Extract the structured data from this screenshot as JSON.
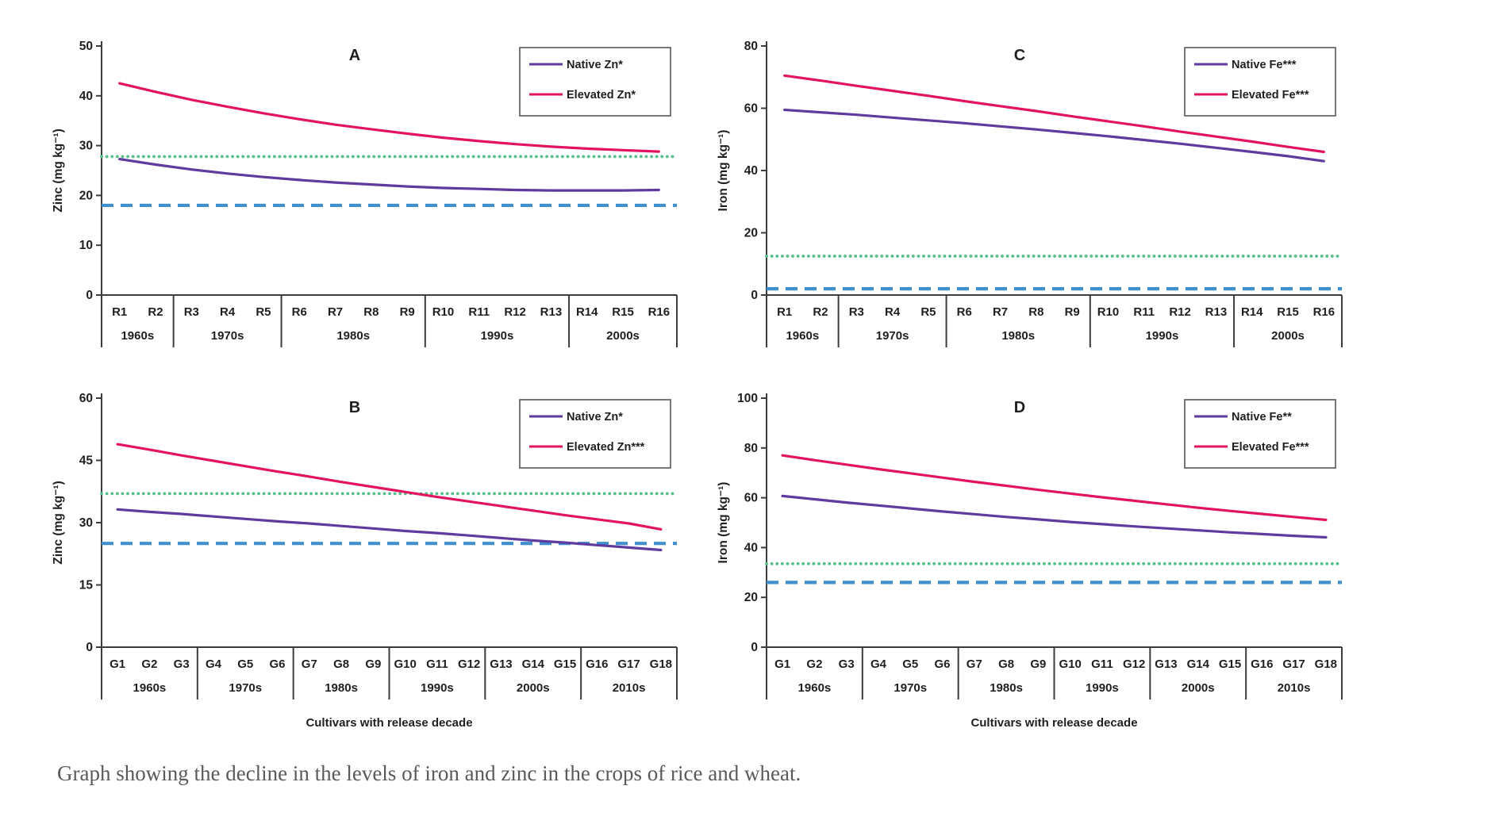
{
  "figure": {
    "caption": "Graph showing the decline in the levels of iron and zinc in the crops of rice and wheat.",
    "xlabel": "Cultivars with release decade",
    "colors": {
      "native_line": "#5f3a9f",
      "elevated_line": "#e3145f",
      "reference_dotted": "#55c08a",
      "reference_dashed": "#3f8fce",
      "axis": "#3c3c3c",
      "caption_text": "#5a5a5a"
    }
  },
  "chart_data": [
    {
      "type": "line",
      "panel": "A",
      "title": "A",
      "ylabel": "Zinc (mg kg⁻¹)",
      "xlabel": "",
      "show_xlabel": false,
      "ylim": [
        0,
        50
      ],
      "yticks": [
        0,
        10,
        20,
        30,
        40,
        50
      ],
      "grid": false,
      "legend_position": "top-right",
      "categories": [
        "R1",
        "R2",
        "R3",
        "R4",
        "R5",
        "R6",
        "R7",
        "R8",
        "R9",
        "R10",
        "R11",
        "R12",
        "R13",
        "R14",
        "R15",
        "R16"
      ],
      "decade_groups": [
        {
          "label": "1960s",
          "count": 2
        },
        {
          "label": "1970s",
          "count": 3
        },
        {
          "label": "1980s",
          "count": 4
        },
        {
          "label": "1990s",
          "count": 4
        },
        {
          "label": "2000s",
          "count": 3
        }
      ],
      "series": [
        {
          "name": "Native Zn*",
          "color": "#5f3a9f",
          "style": "solid",
          "values": [
            27.3,
            26.2,
            25.2,
            24.4,
            23.7,
            23.1,
            22.6,
            22.2,
            21.8,
            21.5,
            21.3,
            21.1,
            21.0,
            21.0,
            21.0,
            21.1
          ]
        },
        {
          "name": "Elevated Zn*",
          "color": "#e3145f",
          "style": "solid",
          "values": [
            42.5,
            40.8,
            39.2,
            37.8,
            36.5,
            35.3,
            34.2,
            33.3,
            32.4,
            31.6,
            30.9,
            30.3,
            29.8,
            29.4,
            29.1,
            28.8
          ]
        }
      ],
      "reference_lines": [
        {
          "value": 27.8,
          "color": "#55c08a",
          "style": "dotted"
        },
        {
          "value": 18.0,
          "color": "#3f8fce",
          "style": "dashed"
        }
      ]
    },
    {
      "type": "line",
      "panel": "C",
      "title": "C",
      "ylabel": "Iron (mg kg⁻¹)",
      "xlabel": "",
      "show_xlabel": false,
      "ylim": [
        0,
        80
      ],
      "yticks": [
        0,
        20,
        40,
        60,
        80
      ],
      "grid": false,
      "legend_position": "top-right",
      "categories": [
        "R1",
        "R2",
        "R3",
        "R4",
        "R5",
        "R6",
        "R7",
        "R8",
        "R9",
        "R10",
        "R11",
        "R12",
        "R13",
        "R14",
        "R15",
        "R16"
      ],
      "decade_groups": [
        {
          "label": "1960s",
          "count": 2
        },
        {
          "label": "1970s",
          "count": 3
        },
        {
          "label": "1980s",
          "count": 4
        },
        {
          "label": "1990s",
          "count": 4
        },
        {
          "label": "2000s",
          "count": 3
        }
      ],
      "series": [
        {
          "name": "Native Fe***",
          "color": "#5f3a9f",
          "style": "solid",
          "values": [
            59.5,
            58.7,
            57.9,
            57.0,
            56.1,
            55.2,
            54.2,
            53.2,
            52.1,
            51.0,
            49.8,
            48.6,
            47.3,
            46.0,
            44.6,
            43.0
          ]
        },
        {
          "name": "Elevated Fe***",
          "color": "#e3145f",
          "style": "solid",
          "values": [
            70.5,
            68.9,
            67.2,
            65.6,
            64.0,
            62.3,
            60.7,
            59.1,
            57.4,
            55.8,
            54.2,
            52.5,
            50.9,
            49.3,
            47.6,
            46.0
          ]
        }
      ],
      "reference_lines": [
        {
          "value": 12.5,
          "color": "#55c08a",
          "style": "dotted"
        },
        {
          "value": 2.0,
          "color": "#3f8fce",
          "style": "dashed"
        }
      ]
    },
    {
      "type": "line",
      "panel": "B",
      "title": "B",
      "ylabel": "Zinc (mg kg⁻¹)",
      "xlabel": "Cultivars with release decade",
      "show_xlabel": true,
      "ylim": [
        0,
        60
      ],
      "yticks": [
        0,
        15,
        30,
        45,
        60
      ],
      "grid": false,
      "legend_position": "top-right",
      "categories": [
        "G1",
        "G2",
        "G3",
        "G4",
        "G5",
        "G6",
        "G7",
        "G8",
        "G9",
        "G10",
        "G11",
        "G12",
        "G13",
        "G14",
        "G15",
        "G16",
        "G17",
        "G18"
      ],
      "decade_groups": [
        {
          "label": "1960s",
          "count": 3
        },
        {
          "label": "1970s",
          "count": 3
        },
        {
          "label": "1980s",
          "count": 3
        },
        {
          "label": "1990s",
          "count": 3
        },
        {
          "label": "2000s",
          "count": 3
        },
        {
          "label": "2010s",
          "count": 3
        }
      ],
      "series": [
        {
          "name": "Native Zn*",
          "color": "#5f3a9f",
          "style": "solid",
          "values": [
            33.2,
            32.6,
            32.1,
            31.5,
            30.9,
            30.3,
            29.8,
            29.2,
            28.6,
            28.0,
            27.5,
            26.9,
            26.3,
            25.7,
            25.2,
            24.6,
            24.0,
            23.4
          ]
        },
        {
          "name": "Elevated Zn***",
          "color": "#e3145f",
          "style": "solid",
          "values": [
            48.9,
            47.6,
            46.2,
            44.9,
            43.6,
            42.3,
            41.1,
            39.8,
            38.6,
            37.4,
            36.2,
            35.1,
            34.0,
            32.9,
            31.8,
            30.8,
            29.8,
            28.4
          ]
        }
      ],
      "reference_lines": [
        {
          "value": 37.0,
          "color": "#55c08a",
          "style": "dotted"
        },
        {
          "value": 25.0,
          "color": "#3f8fce",
          "style": "dashed"
        }
      ]
    },
    {
      "type": "line",
      "panel": "D",
      "title": "D",
      "ylabel": "Iron (mg kg⁻¹)",
      "xlabel": "Cultivars with release decade",
      "show_xlabel": true,
      "ylim": [
        0,
        100
      ],
      "yticks": [
        0,
        20,
        40,
        60,
        80,
        100
      ],
      "grid": false,
      "legend_position": "top-right",
      "categories": [
        "G1",
        "G2",
        "G3",
        "G4",
        "G5",
        "G6",
        "G7",
        "G8",
        "G9",
        "G10",
        "G11",
        "G12",
        "G13",
        "G14",
        "G15",
        "G16",
        "G17",
        "G18"
      ],
      "decade_groups": [
        {
          "label": "1960s",
          "count": 3
        },
        {
          "label": "1970s",
          "count": 3
        },
        {
          "label": "1980s",
          "count": 3
        },
        {
          "label": "1990s",
          "count": 3
        },
        {
          "label": "2000s",
          "count": 3
        },
        {
          "label": "2010s",
          "count": 3
        }
      ],
      "series": [
        {
          "name": "Native Fe**",
          "color": "#5f3a9f",
          "style": "solid",
          "values": [
            60.7,
            59.4,
            58.1,
            56.9,
            55.7,
            54.5,
            53.4,
            52.3,
            51.3,
            50.3,
            49.4,
            48.5,
            47.7,
            46.9,
            46.1,
            45.4,
            44.7,
            44.1
          ]
        },
        {
          "name": "Elevated Fe***",
          "color": "#e3145f",
          "style": "solid",
          "values": [
            77.0,
            75.1,
            73.3,
            71.5,
            69.8,
            68.1,
            66.4,
            64.8,
            63.2,
            61.7,
            60.2,
            58.8,
            57.4,
            56.0,
            54.7,
            53.5,
            52.3,
            51.1
          ]
        }
      ],
      "reference_lines": [
        {
          "value": 33.5,
          "color": "#55c08a",
          "style": "dotted"
        },
        {
          "value": 26.0,
          "color": "#3f8fce",
          "style": "dashed"
        }
      ]
    }
  ]
}
